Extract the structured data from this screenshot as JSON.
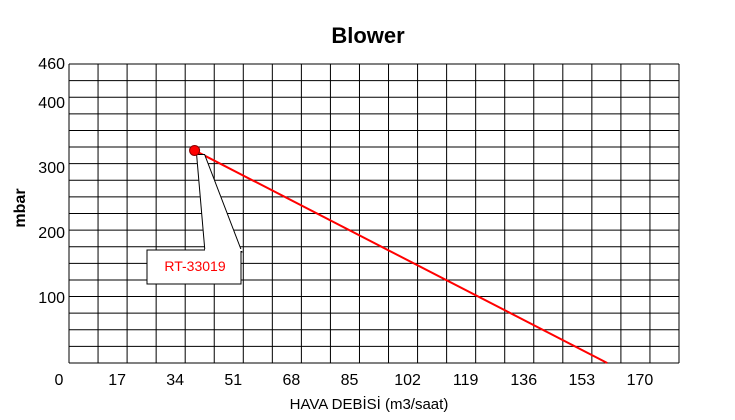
{
  "chart_data": {
    "type": "line",
    "title": "Blower",
    "xlabel": "HAVA DEBİSİ (m3/saat)",
    "ylabel": "mbar",
    "x_ticks": [
      "0",
      "17",
      "34",
      "51",
      "68",
      "85",
      "102",
      "119",
      "136",
      "153",
      "170"
    ],
    "y_ticks": [
      "100",
      "200",
      "300",
      "400",
      "460"
    ],
    "xlim": [
      0,
      170
    ],
    "ylim": [
      0,
      460
    ],
    "grid": true,
    "series": [
      {
        "name": "RT-33019",
        "color": "#ff0000",
        "points": [
          {
            "x": 35,
            "y": 327
          },
          {
            "x": 150,
            "y": 0
          }
        ]
      }
    ],
    "annotation": {
      "text": "RT-33019",
      "x": 35,
      "y": 327,
      "color": "#ff0000"
    }
  }
}
